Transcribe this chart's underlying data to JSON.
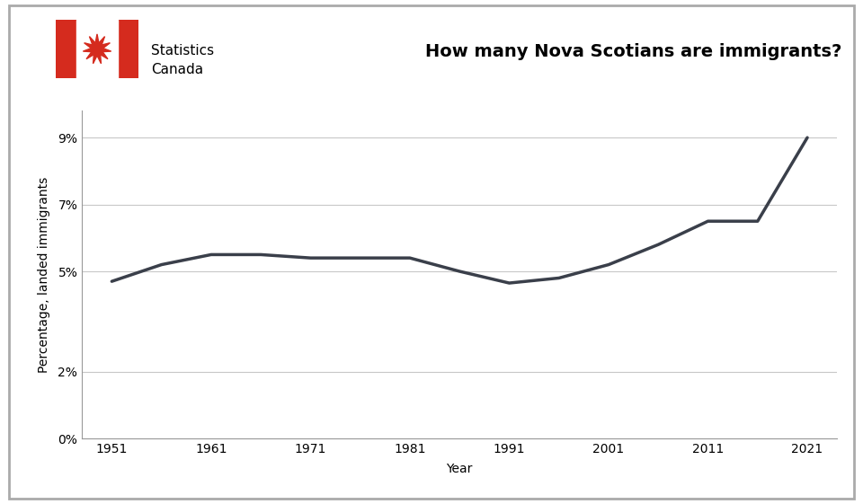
{
  "title": "How many Nova Scotians are immigrants?",
  "xlabel": "Year",
  "ylabel": "Percentage, landed immigrants",
  "years": [
    1951,
    1956,
    1961,
    1966,
    1971,
    1981,
    1986,
    1991,
    1996,
    2001,
    2006,
    2011,
    2016,
    2021
  ],
  "values": [
    4.7,
    5.2,
    5.5,
    5.5,
    5.4,
    5.4,
    5.0,
    4.65,
    4.8,
    5.2,
    5.8,
    6.5,
    6.5,
    9.0
  ],
  "line_color": "#3a3f4a",
  "line_width": 2.5,
  "ytick_positions": [
    0,
    2,
    5,
    7,
    9
  ],
  "ytick_labels": [
    "0%",
    "2%",
    "5%",
    "7%",
    "9%"
  ],
  "xtick_years": [
    1951,
    1961,
    1971,
    1981,
    1991,
    2001,
    2011,
    2021
  ],
  "ylim": [
    0,
    9.8
  ],
  "xlim": [
    1948,
    2024
  ],
  "bg_color": "#ffffff",
  "grid_color": "#c8c8c8",
  "border_color": "#aaaaaa",
  "title_fontsize": 14,
  "axis_label_fontsize": 10,
  "tick_fontsize": 10,
  "flag_red": "#d52b1e",
  "stats_line1": "Statistics",
  "stats_line2": "Canada"
}
